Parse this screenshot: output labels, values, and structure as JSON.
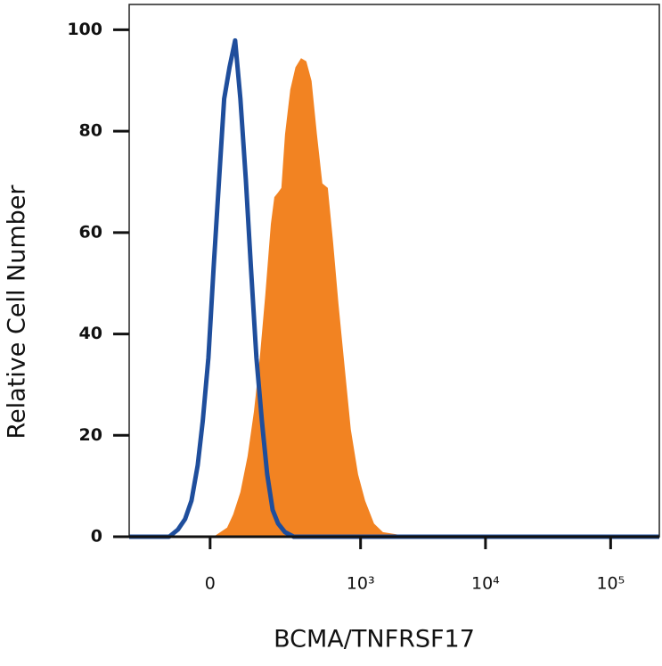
{
  "chart_data": {
    "type": "histogram-overlay",
    "x_label": "BCMA/TNFRSF17",
    "y_label": "Relative Cell Number",
    "xscale": "arcsinh",
    "xlim": [
      -265,
      245000
    ],
    "xticks": [
      0,
      {
        "value": 1000,
        "label": "10³"
      },
      {
        "value": 10000,
        "label": "10⁴"
      },
      {
        "value": 100000,
        "label": "10⁵"
      }
    ],
    "ylim": [
      0,
      105
    ],
    "yticks": [
      0,
      20,
      40,
      60,
      80,
      100
    ],
    "series": [
      {
        "color": "#f28322",
        "fill": true,
        "x": [
          -265,
          8,
          40,
          55,
          74,
          94,
          113,
          132,
          151,
          172,
          186,
          202,
          217,
          234,
          261,
          290,
          324,
          359,
          398,
          441,
          489,
          542,
          599,
          663,
          731,
          834,
          955,
          1089,
          1283,
          1512,
          1934,
          2480,
          245000
        ],
        "values": [
          0,
          0,
          1.8,
          4.4,
          8.8,
          15.9,
          24.7,
          35.3,
          47.6,
          61.7,
          67.0,
          67.9,
          68.8,
          79.4,
          88.2,
          92.6,
          94.4,
          93.8,
          89.9,
          79.4,
          69.7,
          68.8,
          58.2,
          45.9,
          35.3,
          21.2,
          12.3,
          7.1,
          2.6,
          0.9,
          0.5,
          0,
          0
        ]
      },
      {
        "color": "#1f4e9c",
        "fill": false,
        "x": [
          -265,
          -104,
          -79,
          -60,
          -44,
          -29,
          -17,
          -4,
          8,
          21,
          33,
          46,
          60,
          74,
          89,
          104,
          121,
          139,
          158,
          179,
          202,
          234,
          280,
          245000
        ],
        "values": [
          0,
          0,
          1.4,
          3.5,
          7.1,
          14.1,
          22.9,
          35.3,
          52.9,
          70.5,
          86.4,
          92.6,
          97.9,
          86.4,
          70.5,
          52.9,
          35.3,
          22.9,
          12.3,
          5.3,
          2.6,
          0.9,
          0,
          0
        ]
      }
    ]
  }
}
